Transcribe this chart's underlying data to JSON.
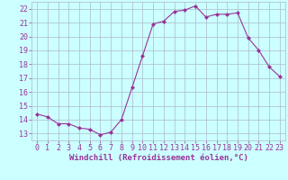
{
  "x": [
    0,
    1,
    2,
    3,
    4,
    5,
    6,
    7,
    8,
    9,
    10,
    11,
    12,
    13,
    14,
    15,
    16,
    17,
    18,
    19,
    20,
    21,
    22,
    23
  ],
  "y": [
    14.4,
    14.2,
    13.7,
    13.7,
    13.4,
    13.3,
    12.9,
    13.1,
    14.0,
    16.3,
    18.6,
    20.9,
    21.1,
    21.8,
    21.9,
    22.2,
    21.4,
    21.6,
    21.6,
    21.7,
    19.9,
    19.0,
    17.8,
    17.1
  ],
  "line_color": "#993399",
  "marker": "D",
  "marker_size": 2.0,
  "bg_color": "#ccffff",
  "grid_color": "#aabbcc",
  "xlabel": "Windchill (Refroidissement éolien,°C)",
  "xlim": [
    -0.5,
    23.5
  ],
  "ylim": [
    12.5,
    22.5
  ],
  "yticks": [
    13,
    14,
    15,
    16,
    17,
    18,
    19,
    20,
    21,
    22
  ],
  "xticks": [
    0,
    1,
    2,
    3,
    4,
    5,
    6,
    7,
    8,
    9,
    10,
    11,
    12,
    13,
    14,
    15,
    16,
    17,
    18,
    19,
    20,
    21,
    22,
    23
  ],
  "tick_color": "#993399",
  "label_color": "#993399",
  "xlabel_fontsize": 6.5,
  "tick_fontsize": 6.0
}
